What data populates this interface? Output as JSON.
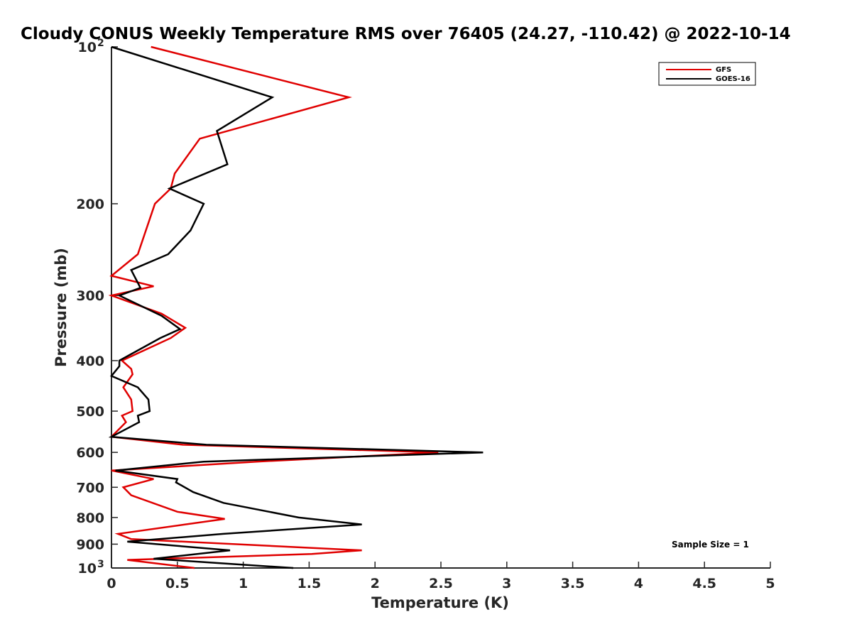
{
  "chart_data": {
    "type": "line",
    "title": "Cloudy CONUS Weekly Temperature RMS over 76405 (24.27, -110.42) @ 2022-10-14",
    "xlabel": "Temperature (K)",
    "ylabel": "Pressure (mb)",
    "xlim": [
      0,
      5
    ],
    "ylim": [
      100,
      1000
    ],
    "yscale": "log",
    "y_reversed": true,
    "grid": false,
    "legend_position": "top-right",
    "x_ticks": [
      "0",
      "0.5",
      "1",
      "1.5",
      "2",
      "2.5",
      "3",
      "3.5",
      "4",
      "4.5",
      "5"
    ],
    "y_ticks": [
      {
        "value": 100,
        "base": "10",
        "exp": "2"
      },
      {
        "value": 200,
        "label": "200"
      },
      {
        "value": 300,
        "label": "300"
      },
      {
        "value": 400,
        "label": "400"
      },
      {
        "value": 500,
        "label": "500"
      },
      {
        "value": 600,
        "label": "600"
      },
      {
        "value": 700,
        "label": "700"
      },
      {
        "value": 800,
        "label": "800"
      },
      {
        "value": 900,
        "label": "900"
      },
      {
        "value": 1000,
        "base": "10",
        "exp": "3"
      }
    ],
    "series": [
      {
        "name": "GFS",
        "color": "#e00000",
        "points": [
          [
            0.3,
            100
          ],
          [
            1.8,
            125
          ],
          [
            0.67,
            150
          ],
          [
            0.48,
            175
          ],
          [
            0.45,
            187
          ],
          [
            0.33,
            200
          ],
          [
            0.2,
            250
          ],
          [
            0.0,
            275
          ],
          [
            0.32,
            288
          ],
          [
            0.0,
            300
          ],
          [
            0.38,
            325
          ],
          [
            0.56,
            346
          ],
          [
            0.45,
            362
          ],
          [
            0.08,
            400
          ],
          [
            0.15,
            415
          ],
          [
            0.16,
            425
          ],
          [
            0.09,
            450
          ],
          [
            0.15,
            475
          ],
          [
            0.16,
            500
          ],
          [
            0.08,
            510
          ],
          [
            0.11,
            525
          ],
          [
            0.0,
            560
          ],
          [
            0.54,
            580
          ],
          [
            2.48,
            600
          ],
          [
            1.1,
            625
          ],
          [
            0.0,
            650
          ],
          [
            0.32,
            675
          ],
          [
            0.09,
            700
          ],
          [
            0.15,
            725
          ],
          [
            0.5,
            780
          ],
          [
            0.86,
            805
          ],
          [
            0.05,
            860
          ],
          [
            0.15,
            880
          ],
          [
            1.9,
            925
          ],
          [
            1.52,
            940
          ],
          [
            0.12,
            965
          ],
          [
            0.63,
            1000
          ]
        ]
      },
      {
        "name": "GOES-16",
        "color": "#000000",
        "points": [
          [
            0.0,
            100
          ],
          [
            1.22,
            125
          ],
          [
            0.8,
            145
          ],
          [
            0.88,
            168
          ],
          [
            0.44,
            187
          ],
          [
            0.7,
            200
          ],
          [
            0.6,
            225
          ],
          [
            0.43,
            250
          ],
          [
            0.15,
            268
          ],
          [
            0.22,
            290
          ],
          [
            0.06,
            300
          ],
          [
            0.38,
            328
          ],
          [
            0.52,
            348
          ],
          [
            0.37,
            362
          ],
          [
            0.06,
            400
          ],
          [
            0.06,
            410
          ],
          [
            0.0,
            428
          ],
          [
            0.2,
            450
          ],
          [
            0.28,
            475
          ],
          [
            0.29,
            500
          ],
          [
            0.2,
            510
          ],
          [
            0.21,
            525
          ],
          [
            0.0,
            560
          ],
          [
            0.72,
            580
          ],
          [
            2.82,
            600
          ],
          [
            0.7,
            625
          ],
          [
            0.03,
            650
          ],
          [
            0.5,
            675
          ],
          [
            0.49,
            685
          ],
          [
            0.62,
            715
          ],
          [
            0.85,
            750
          ],
          [
            1.42,
            800
          ],
          [
            1.9,
            825
          ],
          [
            0.85,
            860
          ],
          [
            0.12,
            890
          ],
          [
            0.9,
            925
          ],
          [
            0.32,
            960
          ],
          [
            1.38,
            1000
          ]
        ]
      }
    ],
    "annotations": [
      "Sample Size = 1"
    ]
  }
}
